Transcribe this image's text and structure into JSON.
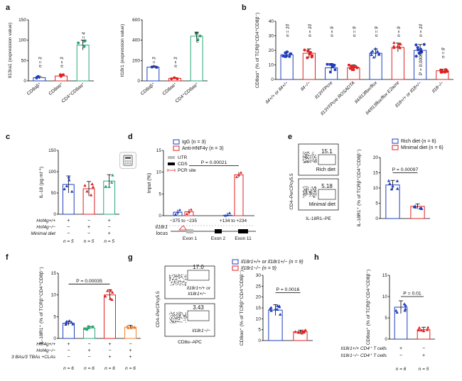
{
  "figure": {
    "panels": {
      "a": "a",
      "b": "b",
      "c": "c",
      "d": "d",
      "e": "e",
      "f": "f",
      "g": "g",
      "h": "h"
    },
    "toolbar_icon": "calculator-icon"
  },
  "chart_data": [
    {
      "panel": "a-left",
      "type": "bar",
      "categories": [
        "CD8αβ⁺",
        "CD8αα⁺",
        "CD4⁺CD8αα⁺"
      ],
      "values": [
        8,
        12,
        88
      ],
      "errors": [
        3,
        3,
        12
      ],
      "n_labels": [
        "n = 3",
        "n = 3",
        "n = 4"
      ],
      "colors": [
        "#1f3fbf",
        "#e02020",
        "#2aa876"
      ],
      "ylabel": "Il13ra1 (expression value)",
      "ylim": [
        0,
        150
      ],
      "yticks": [
        0,
        50,
        100,
        150
      ]
    },
    {
      "panel": "a-right",
      "type": "bar",
      "categories": [
        "CD8αβ⁺",
        "CD8αα⁺",
        "CD4⁺CD8αα⁺"
      ],
      "values": [
        135,
        25,
        440
      ],
      "errors": [
        10,
        5,
        40
      ],
      "n_labels": [
        "n = 3",
        "n = 3",
        "n = 4"
      ],
      "colors": [
        "#1f3fbf",
        "#e02020",
        "#2aa876"
      ],
      "ylabel": "Il18r1 (expression value)",
      "ylim": [
        0,
        600
      ],
      "yticks": [
        0,
        200,
        400,
        600
      ]
    },
    {
      "panel": "b",
      "type": "bar",
      "categories": [
        "Il4+/+ or Il4+/−",
        "Il4−/−",
        "Il13YFPcre",
        "Il13YFPcre ROSADTA",
        "Il4/Il13flox/flox",
        "Il4/Il13flox/flox E2acre",
        "Il18+/+ or Il18+/−",
        "Il18−/−"
      ],
      "values": [
        17,
        18,
        8,
        8,
        18,
        22,
        20,
        6
      ],
      "errors": [
        2,
        3,
        3,
        2,
        3,
        3,
        4,
        1
      ],
      "n_labels": [
        "n = 10",
        "n = 10",
        "n = 9",
        "n = 9",
        "n = 9",
        "n = 9",
        "n = 10",
        "n = 8"
      ],
      "colors": [
        "#1f3fbf",
        "#e02020",
        "#1f3fbf",
        "#e02020",
        "#1f3fbf",
        "#e02020",
        "#1f3fbf",
        "#e02020"
      ],
      "ylabel": "CD8αα⁺ (% of TCRβ⁺CD4⁺CD8β⁻)",
      "ylim": [
        0,
        40
      ],
      "yticks": [
        0,
        10,
        20,
        30,
        40
      ],
      "annotation": "P = 0.00031"
    },
    {
      "panel": "c",
      "type": "bar",
      "categories": [
        "1",
        "2",
        "3"
      ],
      "values": [
        70,
        60,
        78
      ],
      "errors": [
        20,
        17,
        15
      ],
      "n_labels": [
        "n = 5",
        "n = 5",
        "n = 5"
      ],
      "colors": [
        "#1f3fbf",
        "#e02020",
        "#2aa876"
      ],
      "ylabel": "IL-18 (pg ml⁻¹)",
      "ylim": [
        0,
        150
      ],
      "yticks": [
        0,
        50,
        100,
        150
      ],
      "conditions": [
        {
          "label": "Hnf4g+/+",
          "marks": [
            "+",
            "−",
            "+"
          ]
        },
        {
          "label": "Hnf4g−/−",
          "marks": [
            "−",
            "+",
            "−"
          ]
        },
        {
          "label": "Minimal diet",
          "marks": [
            "−",
            "−",
            "+"
          ]
        }
      ]
    },
    {
      "panel": "d",
      "type": "bar",
      "categories": [
        "−375 to −235",
        "+134 to +234"
      ],
      "series": [
        {
          "name": "IgG (n = 3)",
          "values": [
            0.8,
            0.1
          ]
        },
        {
          "name": "Anti-HNF4γ (n = 3)",
          "values": [
            0.9,
            9.4
          ]
        }
      ],
      "ylabel": "Input (%)",
      "ylim": [
        0,
        15
      ],
      "yticks": [
        0,
        5,
        10,
        15
      ],
      "annotation": "P = 0.00021",
      "legend2": [
        "UTR",
        "CDS",
        "PCR site"
      ],
      "locus_label": "Il18r1 locus",
      "exons": [
        "Exon 1",
        "Exon 2",
        "Exon 11"
      ]
    },
    {
      "panel": "e",
      "type": "bar",
      "categories": [
        "Rich diet",
        "Minimal diet"
      ],
      "values": [
        11,
        4
      ],
      "errors": [
        1.5,
        0.8
      ],
      "series_names": [
        "Rich diet (n = 6)",
        "Minimal diet (n = 6)"
      ],
      "ylabel": "IL-18R1⁺ (% of TCRβ⁺CD4⁺CD8β⁻)",
      "ylim": [
        0,
        20
      ],
      "yticks": [
        0,
        5,
        10,
        15,
        20
      ],
      "annotation": "P = 0.00097",
      "flow": {
        "gate1": "15.1",
        "gate2": "5.18",
        "label1": "Rich diet",
        "label2": "Minimal diet",
        "xlabel": "IL-18R1–PE",
        "ylabel": "CD4–PerCPcy5.5"
      }
    },
    {
      "panel": "f",
      "type": "bar",
      "categories": [
        "1",
        "2",
        "3",
        "4"
      ],
      "values": [
        3.5,
        2.4,
        10,
        2.6
      ],
      "errors": [
        0.5,
        0.3,
        1.2,
        0.4
      ],
      "n_labels": [
        "n = 6",
        "n = 6",
        "n = 6",
        "n = 6"
      ],
      "colors": [
        "#1f3fbf",
        "#2aa876",
        "#e02020",
        "#f08030"
      ],
      "ylabel": "IL-18R1⁺ (% of TCRβ⁺CD4⁺CD8β⁻)",
      "ylim": [
        0,
        15
      ],
      "yticks": [
        0,
        5,
        10,
        15
      ],
      "annotation": "P = 0.00035",
      "conditions": [
        {
          "label": "Hnf4g+/+",
          "marks": [
            "+",
            "−",
            "+",
            "−"
          ]
        },
        {
          "label": "Hnf4g−/−",
          "marks": [
            "−",
            "+",
            "−",
            "+"
          ]
        },
        {
          "label": "3 BAs/3 TBAs +CLAs",
          "marks": [
            "−",
            "−",
            "+",
            "+"
          ]
        }
      ]
    },
    {
      "panel": "g",
      "type": "bar",
      "categories": [
        "Il18r1+/+ or Il18r1+/−",
        "Il18r1−/−"
      ],
      "values": [
        14,
        4
      ],
      "errors": [
        2.5,
        0.8
      ],
      "series_names": [
        "Il18r1+/+ or Il18r1+/− (n = 9)",
        "Il18r1−/− (n = 9)"
      ],
      "ylabel": "CD8αα⁺ (% of TCRβ⁺CD4⁺CD8β⁻)",
      "ylim": [
        0,
        30
      ],
      "yticks": [
        0,
        5,
        10,
        15,
        20,
        25,
        30
      ],
      "annotation": "P = 0.0016",
      "flow": {
        "gate1": "17.0",
        "gate2": "3.43",
        "label1": "Il18r1+/+ or Il18r1+/−",
        "label2": "Il18r1−/−",
        "xlabel": "CD8α–APC",
        "ylabel": "CD4–PerCPcy5.5"
      }
    },
    {
      "panel": "h",
      "type": "bar",
      "categories": [
        "1",
        "2"
      ],
      "values": [
        7.5,
        2.2
      ],
      "errors": [
        1.5,
        0.6
      ],
      "n_labels": [
        "n = 6",
        "n = 5"
      ],
      "colors": [
        "#1f3fbf",
        "#e02020"
      ],
      "ylabel": "CD8αα⁺ (% of TCRβ⁺CD4⁺CD8β⁻)",
      "ylim": [
        0,
        15
      ],
      "yticks": [
        0,
        5,
        10,
        15
      ],
      "annotation": "P = 0.01",
      "conditions": [
        {
          "label": "Il18r1+/+ CD4⁺ T cells",
          "marks": [
            "+",
            "−"
          ]
        },
        {
          "label": "Il18r1−/− CD4⁺ T cells",
          "marks": [
            "−",
            "+"
          ]
        }
      ]
    }
  ]
}
